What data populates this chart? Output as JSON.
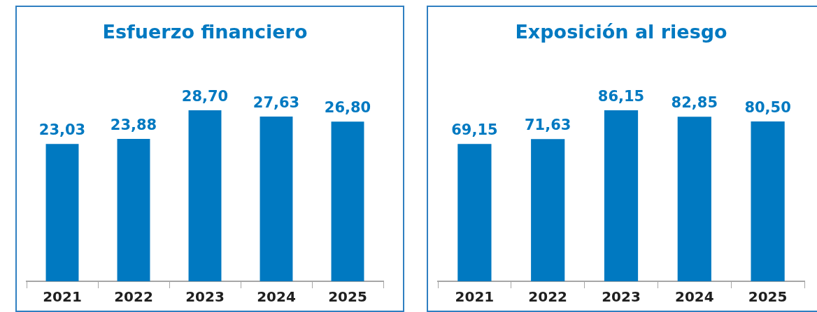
{
  "chart_data": [
    {
      "type": "bar",
      "title": "Esfuerzo financiero",
      "categories": [
        "2021",
        "2022",
        "2023",
        "2024",
        "2025"
      ],
      "values": [
        23.03,
        23.88,
        28.7,
        27.63,
        26.8
      ],
      "value_labels": [
        "23,03",
        "23,88",
        "28,70",
        "27,63",
        "26,80"
      ],
      "color": "#0079c1",
      "tick_labels": "x",
      "legend": false
    },
    {
      "type": "bar",
      "title": "Exposición al riesgo",
      "categories": [
        "2021",
        "2022",
        "2023",
        "2024",
        "2025"
      ],
      "values": [
        69.15,
        71.63,
        86.15,
        82.85,
        80.5
      ],
      "value_labels": [
        "69,15",
        "71,63",
        "86,15",
        "82,85",
        "80,50"
      ],
      "color": "#0079c1",
      "tick_labels": "x",
      "legend": false
    }
  ]
}
